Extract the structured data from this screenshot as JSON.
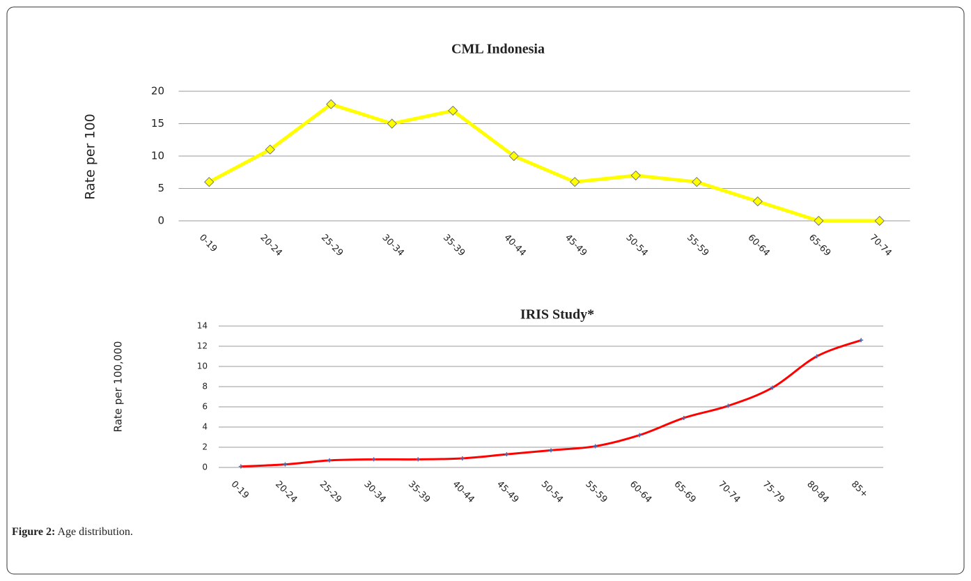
{
  "chart_data": [
    {
      "type": "line",
      "title": "CML Indonesia",
      "y_label": "Rate per 100",
      "categories": [
        "0-19",
        "20-24",
        "25-29",
        "30-34",
        "35-39",
        "40-44",
        "45-49",
        "50-54",
        "55-59",
        "60-64",
        "65-69",
        "70-74"
      ],
      "values": [
        6,
        11,
        18,
        15,
        17,
        10,
        6,
        7,
        6,
        3,
        0,
        0
      ],
      "color": "#ffff00",
      "marker": "diamond",
      "ylim": [
        0,
        20
      ],
      "yticks": [
        0,
        5,
        10,
        15,
        20
      ],
      "grid": true
    },
    {
      "type": "line",
      "title": "IRIS Study*",
      "y_label": "Rate per 100,000",
      "categories": [
        "0-19",
        "20-24",
        "25-29",
        "30-34",
        "35-39",
        "40-44",
        "45-49",
        "50-54",
        "55-59",
        "60-64",
        "65-69",
        "70-74",
        "75-79",
        "80-84",
        "85+"
      ],
      "values": [
        0.1,
        0.3,
        0.7,
        0.8,
        0.8,
        0.9,
        1.3,
        1.7,
        2.1,
        3.2,
        4.9,
        6.1,
        7.9,
        11,
        12.6
      ],
      "color": "#ff0000",
      "marker": "plus",
      "smooth": true,
      "ylim": [
        0,
        14
      ],
      "yticks": [
        0,
        2,
        4,
        6,
        8,
        10,
        12,
        14
      ],
      "grid": true
    }
  ],
  "caption": {
    "label": "Figure 2:",
    "text": "Age distribution."
  }
}
